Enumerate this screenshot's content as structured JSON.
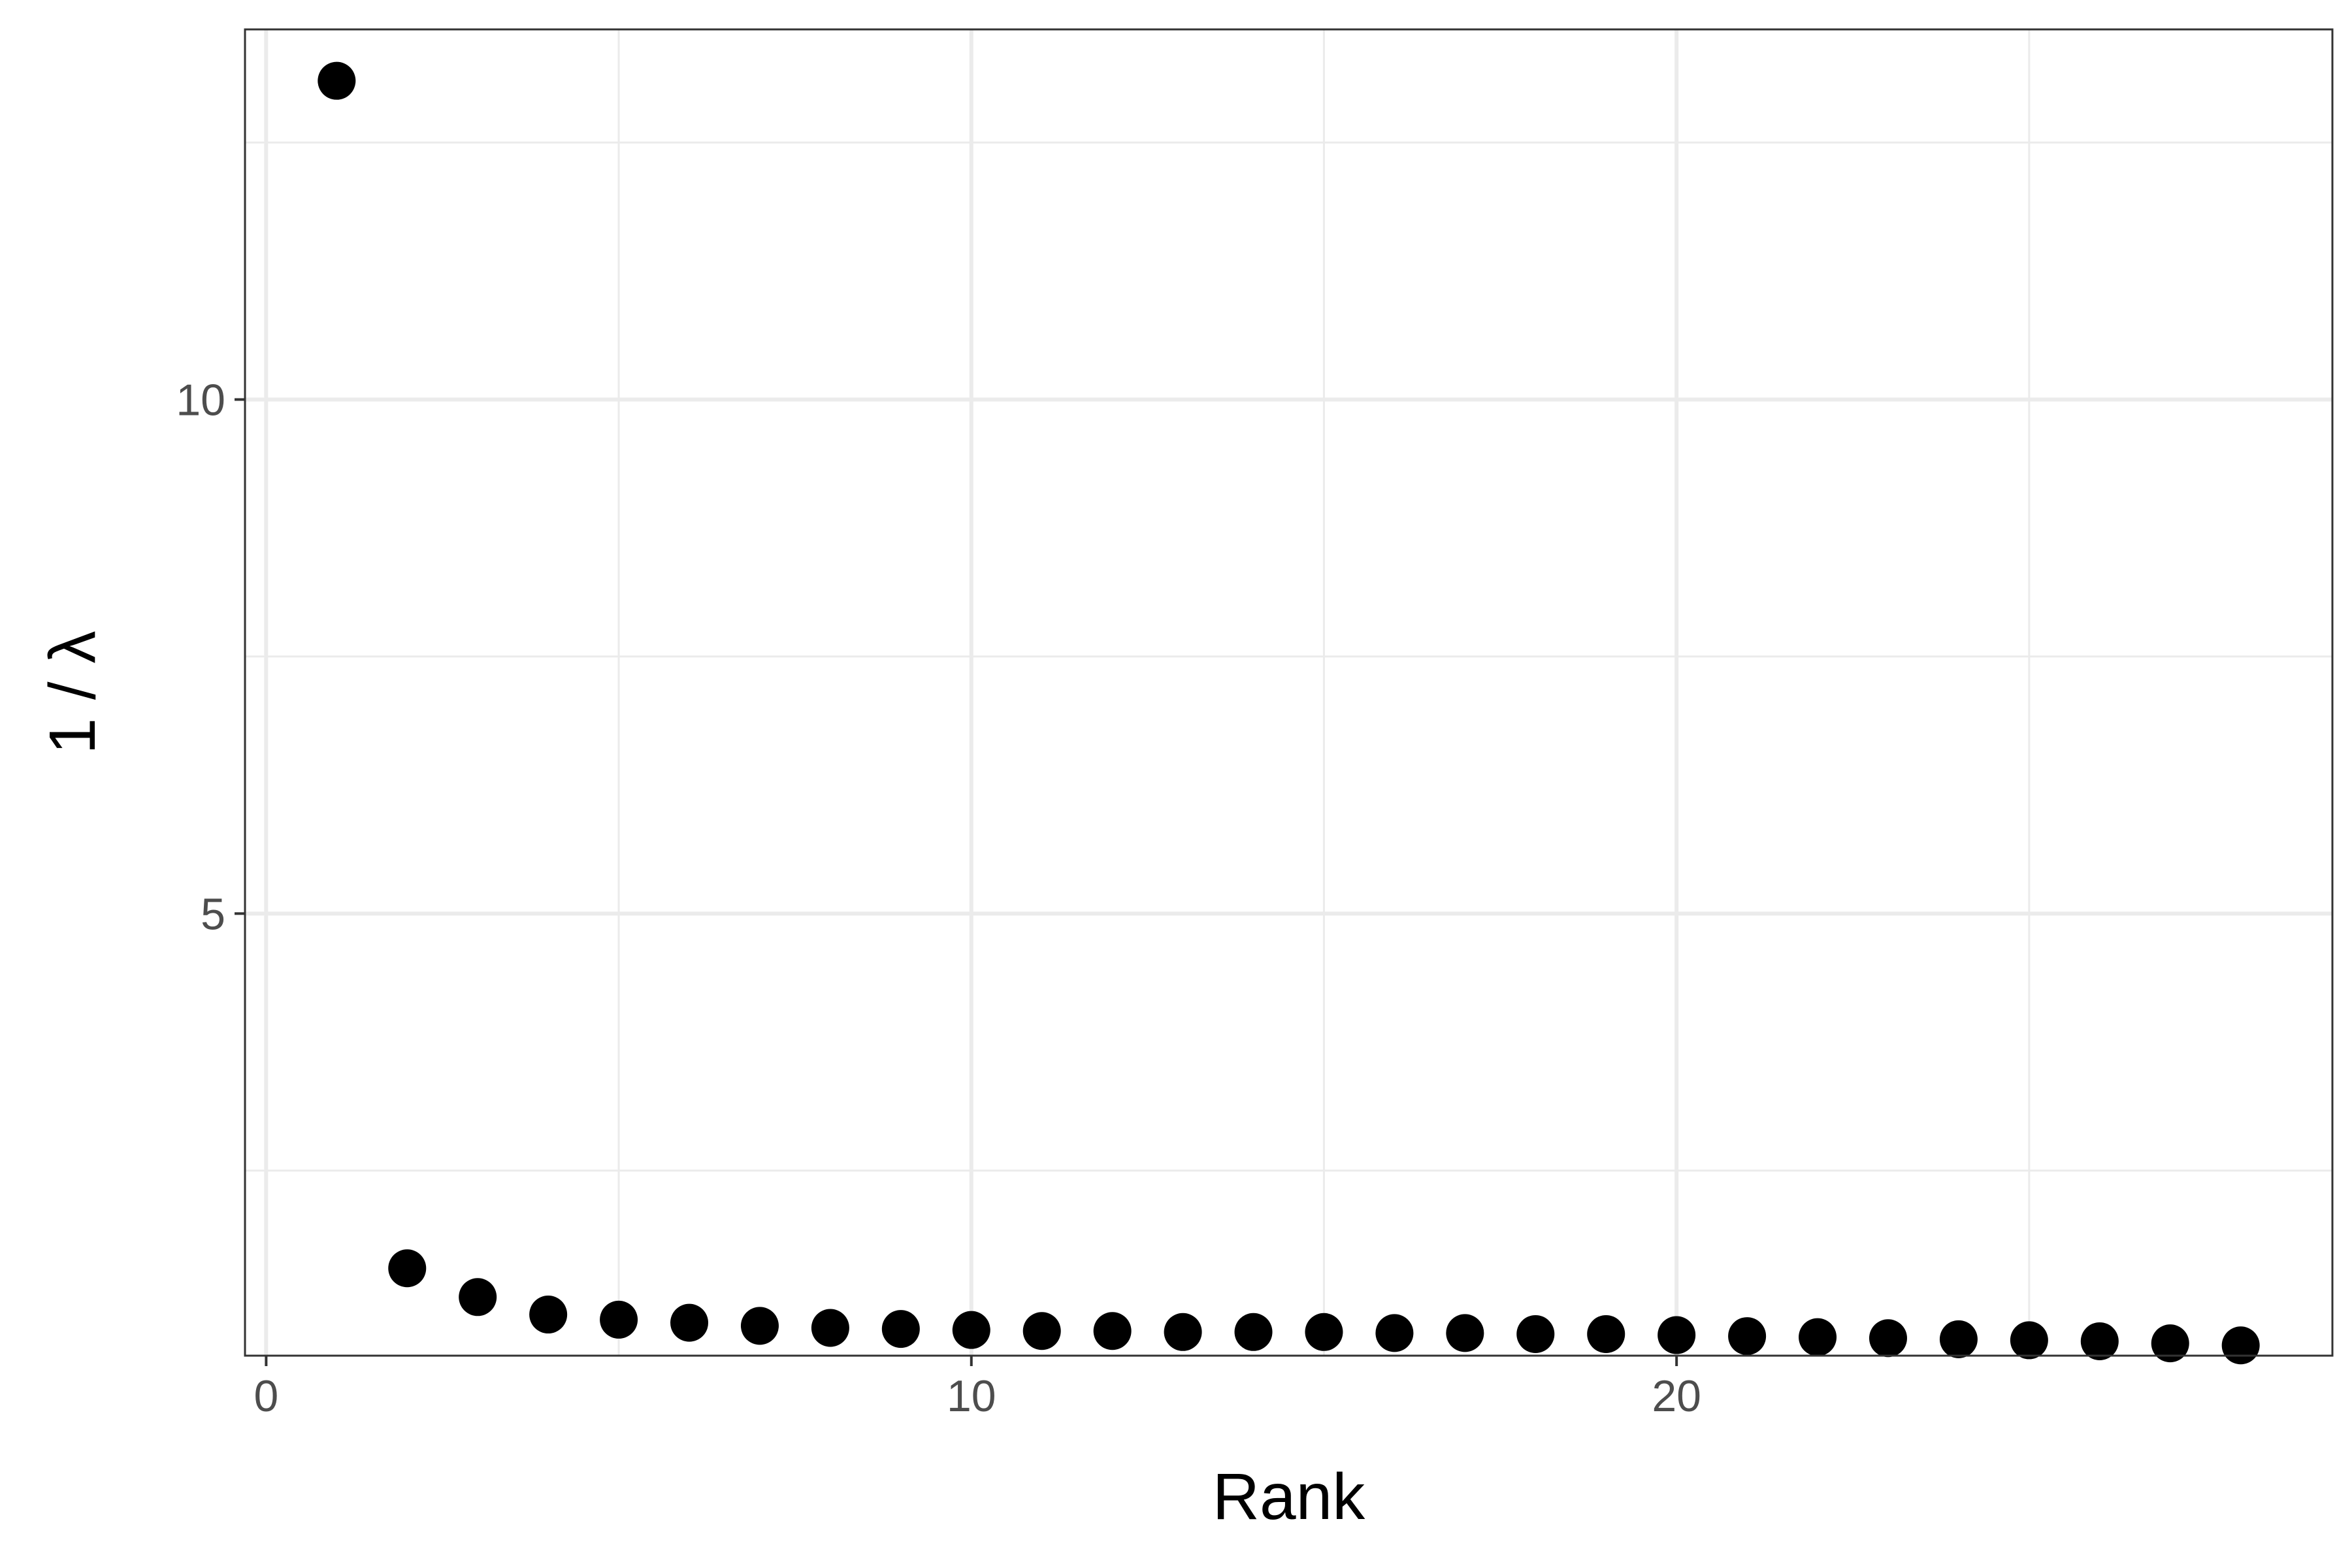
{
  "chart_data": {
    "type": "scatter",
    "title": "",
    "xlabel": "Rank",
    "ylabel": "1 / λ",
    "xlim": [
      -0.3,
      29.3
    ],
    "ylim": [
      0.7,
      13.6
    ],
    "x_ticks": [
      0,
      10,
      20
    ],
    "x_tick_labels": [
      "0",
      "10",
      "20"
    ],
    "y_ticks": [
      5,
      10
    ],
    "y_tick_labels": [
      "5",
      "10"
    ],
    "x_minor_ticks": [
      5,
      15,
      25
    ],
    "y_minor_ticks": [
      2.5,
      7.5,
      12.5
    ],
    "grid": true,
    "theme": "bw",
    "point_color": "#000000",
    "series": [
      {
        "x": [
          1,
          2,
          3,
          4,
          5,
          6,
          7,
          8,
          9,
          10,
          11,
          12,
          13,
          14,
          15,
          16,
          17,
          18,
          19,
          20,
          21,
          22,
          23,
          24,
          25,
          26,
          27,
          28
        ],
        "y": [
          13.1,
          1.55,
          1.27,
          1.1,
          1.05,
          1.02,
          0.99,
          0.97,
          0.96,
          0.95,
          0.94,
          0.94,
          0.93,
          0.93,
          0.93,
          0.92,
          0.92,
          0.91,
          0.91,
          0.9,
          0.89,
          0.88,
          0.87,
          0.86,
          0.85,
          0.84,
          0.82,
          0.8
        ]
      }
    ]
  }
}
